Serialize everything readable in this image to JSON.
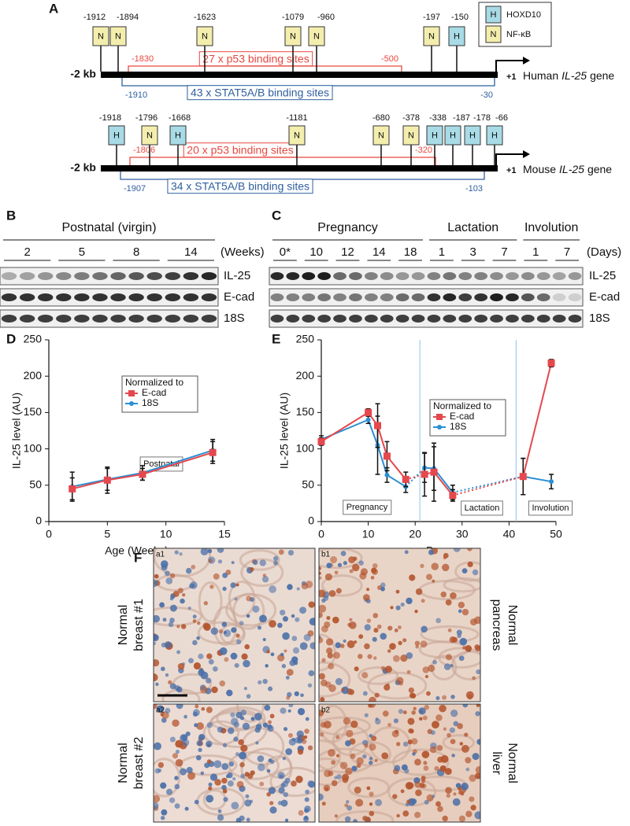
{
  "panel_labels": [
    "A",
    "B",
    "C",
    "D",
    "E",
    "F"
  ],
  "promoter": {
    "legend": [
      {
        "symbol": "H",
        "label": "HOXD10"
      },
      {
        "symbol": "N",
        "label": "NF-κB"
      }
    ],
    "start_label": "-2 kb",
    "tss_label": "+1",
    "genes": [
      {
        "species": "Human",
        "gene": "IL-25",
        "suffix": "gene",
        "sites": [
          {
            "position": -1912,
            "symbol": "N"
          },
          {
            "position": -1894,
            "symbol": "N"
          },
          {
            "position": -1623,
            "symbol": "N"
          },
          {
            "position": -1079,
            "symbol": "N"
          },
          {
            "position": -960,
            "symbol": "N"
          },
          {
            "position": -197,
            "symbol": "N"
          },
          {
            "position": -150,
            "symbol": "H"
          }
        ],
        "p53": {
          "start": -1830,
          "end": -500,
          "label": "27 x p53 binding sites"
        },
        "stat": {
          "start": -1910,
          "end": -30,
          "label": "43 x STAT5A/B binding sites"
        }
      },
      {
        "species": "Mouse",
        "gene": "IL-25",
        "suffix": "gene",
        "sites": [
          {
            "position": -1918,
            "symbol": "H"
          },
          {
            "position": -1796,
            "symbol": "N"
          },
          {
            "position": -1668,
            "symbol": "H"
          },
          {
            "position": -1181,
            "symbol": "N"
          },
          {
            "position": -680,
            "symbol": "N"
          },
          {
            "position": -378,
            "symbol": "N"
          },
          {
            "position": -338,
            "symbol": "H"
          },
          {
            "position": -187,
            "symbol": "H"
          },
          {
            "position": -178,
            "symbol": "H"
          },
          {
            "position": -66,
            "symbol": "H"
          }
        ],
        "p53": {
          "start": -1806,
          "end": -320,
          "label": "20 x p53 binding sites"
        },
        "stat": {
          "start": -1907,
          "end": -103,
          "label": "34 x STAT5A/B binding sites"
        }
      }
    ]
  },
  "blots": [
    {
      "groups": [
        {
          "label": "Postnatal (virgin)",
          "time_points": [
            "2",
            "5",
            "8",
            "14"
          ]
        }
      ],
      "unit": "(Weeks)",
      "rows": [
        "IL-25",
        "E-cad",
        "18S"
      ]
    },
    {
      "groups": [
        {
          "label": "Pregnancy",
          "time_points": [
            "0*",
            "10",
            "12",
            "14",
            "18"
          ]
        },
        {
          "label": "Lactation",
          "time_points": [
            "1",
            "3",
            "7"
          ]
        },
        {
          "label": "Involution",
          "time_points": [
            "1",
            "7"
          ]
        }
      ],
      "unit": "(Days)",
      "rows": [
        "IL-25",
        "E-cad",
        "18S"
      ]
    }
  ],
  "chart_data": [
    {
      "type": "line",
      "xlabel": "Age (Weeks)",
      "ylabel": "IL-25 level (AU)",
      "legend_title": "Normalized to",
      "annotations": [
        "Postnatal"
      ],
      "x": [
        2,
        5,
        8,
        14
      ],
      "series": [
        {
          "name": "E-cad",
          "color": "#e5484d",
          "marker": "square",
          "values": [
            45,
            57,
            65,
            95
          ],
          "errors": [
            15,
            18,
            8,
            15
          ]
        },
        {
          "name": "18S",
          "color": "#2b8fd3",
          "marker": "circle",
          "values": [
            48,
            58,
            67,
            98
          ],
          "errors": [
            20,
            15,
            10,
            15
          ]
        }
      ],
      "xlim": [
        0,
        15
      ],
      "xticks": [
        0,
        5,
        10,
        15
      ],
      "ylim": [
        0,
        250
      ],
      "yticks": [
        0,
        50,
        100,
        150,
        200,
        250
      ]
    },
    {
      "type": "line",
      "xlabel": "Days",
      "ylabel": "IL-25 level (AU)",
      "legend_title": "Normalized to",
      "annotations": [
        "Pregnancy",
        "Lactation",
        "Involution"
      ],
      "x": [
        0,
        10,
        12,
        14,
        18,
        22,
        24,
        28,
        43,
        49
      ],
      "vlines": [
        21,
        41.5
      ],
      "vline_color": "#8fc3e8",
      "series": [
        {
          "name": "E-cad",
          "color": "#e5484d",
          "marker": "square",
          "values": [
            110,
            150,
            132,
            90,
            58,
            65,
            68,
            36,
            62,
            218
          ],
          "errors": [
            5,
            5,
            30,
            20,
            10,
            30,
            40,
            8,
            25,
            5
          ]
        },
        {
          "name": "18S",
          "color": "#2b8fd3",
          "marker": "circle",
          "values": [
            113,
            140,
            105,
            64,
            48,
            74,
            73,
            40,
            62,
            55
          ],
          "errors": [
            5,
            5,
            40,
            10,
            8,
            20,
            30,
            10,
            25,
            10
          ]
        }
      ],
      "xlim": [
        0,
        50
      ],
      "xticks": [
        0,
        10,
        20,
        30,
        40,
        50
      ],
      "ylim": [
        0,
        250
      ],
      "yticks": [
        0,
        50,
        100,
        150,
        200,
        250
      ]
    }
  ],
  "histology": [
    {
      "tag": "a1",
      "side_label": [
        "Normal",
        "breast #1"
      ]
    },
    {
      "tag": "b1",
      "side_label": [
        "Normal",
        "pancreas"
      ]
    },
    {
      "tag": "a2",
      "side_label": [
        "Normal",
        "breast #2"
      ]
    },
    {
      "tag": "b2",
      "side_label": [
        "Normal",
        "liver"
      ]
    }
  ]
}
